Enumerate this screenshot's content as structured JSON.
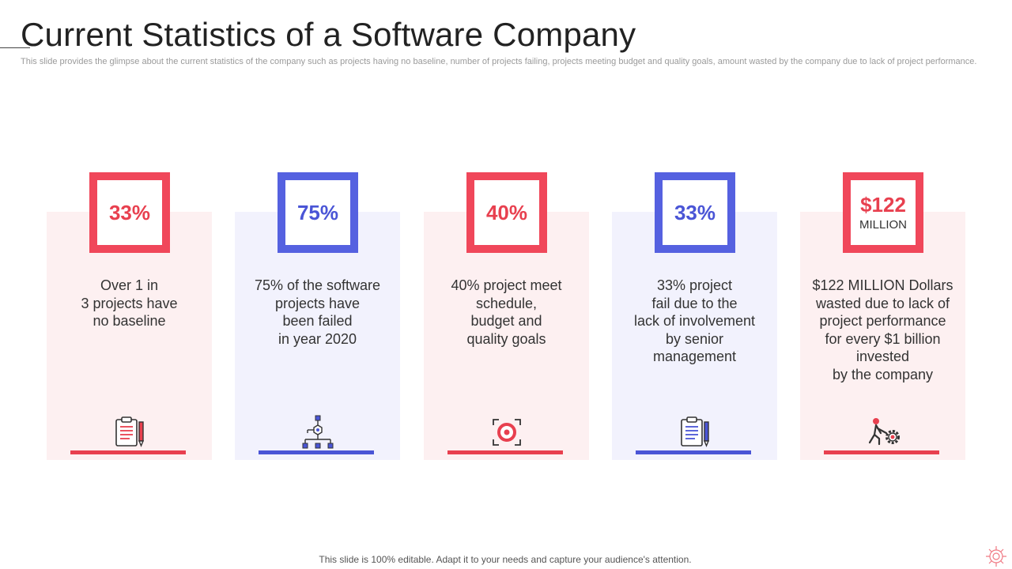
{
  "title": "Current Statistics of a Software Company",
  "subtitle": "This slide provides the glimpse about the current statistics of the company such as projects having no baseline, number of projects failing, projects meeting budget and quality goals, amount wasted by the company due to lack of project performance.",
  "colors": {
    "red": "#f0475a",
    "blue": "#5561e0",
    "red_bg": "#fdf0f1",
    "blue_bg": "#f2f2fd"
  },
  "cards": [
    {
      "value": "33%",
      "unit": "",
      "text": "Over 1 in\n3 projects have\nno baseline",
      "icon": "clipboard-pencil-icon"
    },
    {
      "value": "75%",
      "unit": "",
      "text": "75% of the software\nprojects have\nbeen failed\nin year 2020",
      "icon": "network-hierarchy-icon"
    },
    {
      "value": "40%",
      "unit": "",
      "text": "40% project meet\nschedule,\nbudget and\nquality goals",
      "icon": "target-focus-icon"
    },
    {
      "value": "33%",
      "unit": "",
      "text": "33% project\nfail due to the\nlack of involvement\nby senior\nmanagement",
      "icon": "clipboard-pencil-icon"
    },
    {
      "value": "$122",
      "unit": "MILLION",
      "text": "$122 MILLION Dollars\nwasted due to lack of\nproject performance\nfor every $1 billion\ninvested\nby the company",
      "icon": "person-pushing-gear-icon"
    }
  ],
  "footer": "This slide is 100% editable. Adapt it to your needs and capture your audience's attention."
}
